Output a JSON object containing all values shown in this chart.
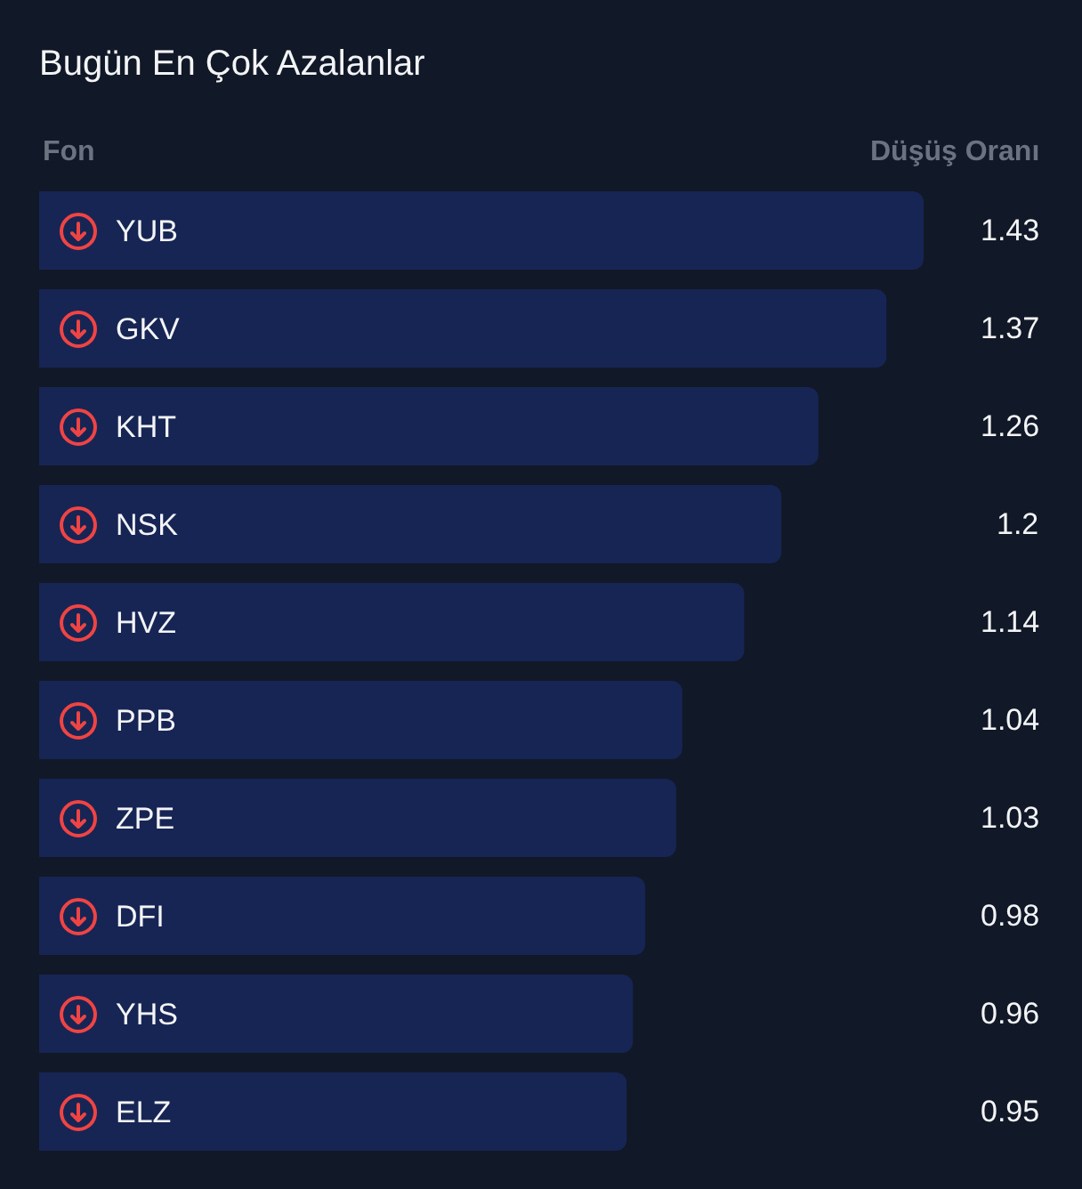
{
  "chart_data": {
    "type": "bar",
    "title": "Bugün En Çok Azalanlar",
    "ylabel": "Fon",
    "xlabel": "Düşüş Oranı",
    "orientation": "horizontal",
    "categories": [
      "YUB",
      "GKV",
      "KHT",
      "NSK",
      "HVZ",
      "PPB",
      "ZPE",
      "DFI",
      "YHS",
      "ELZ"
    ],
    "values": [
      1.43,
      1.37,
      1.26,
      1.2,
      1.14,
      1.04,
      1.03,
      0.98,
      0.96,
      0.95
    ],
    "color": "#172554",
    "data_labels": true
  }
}
